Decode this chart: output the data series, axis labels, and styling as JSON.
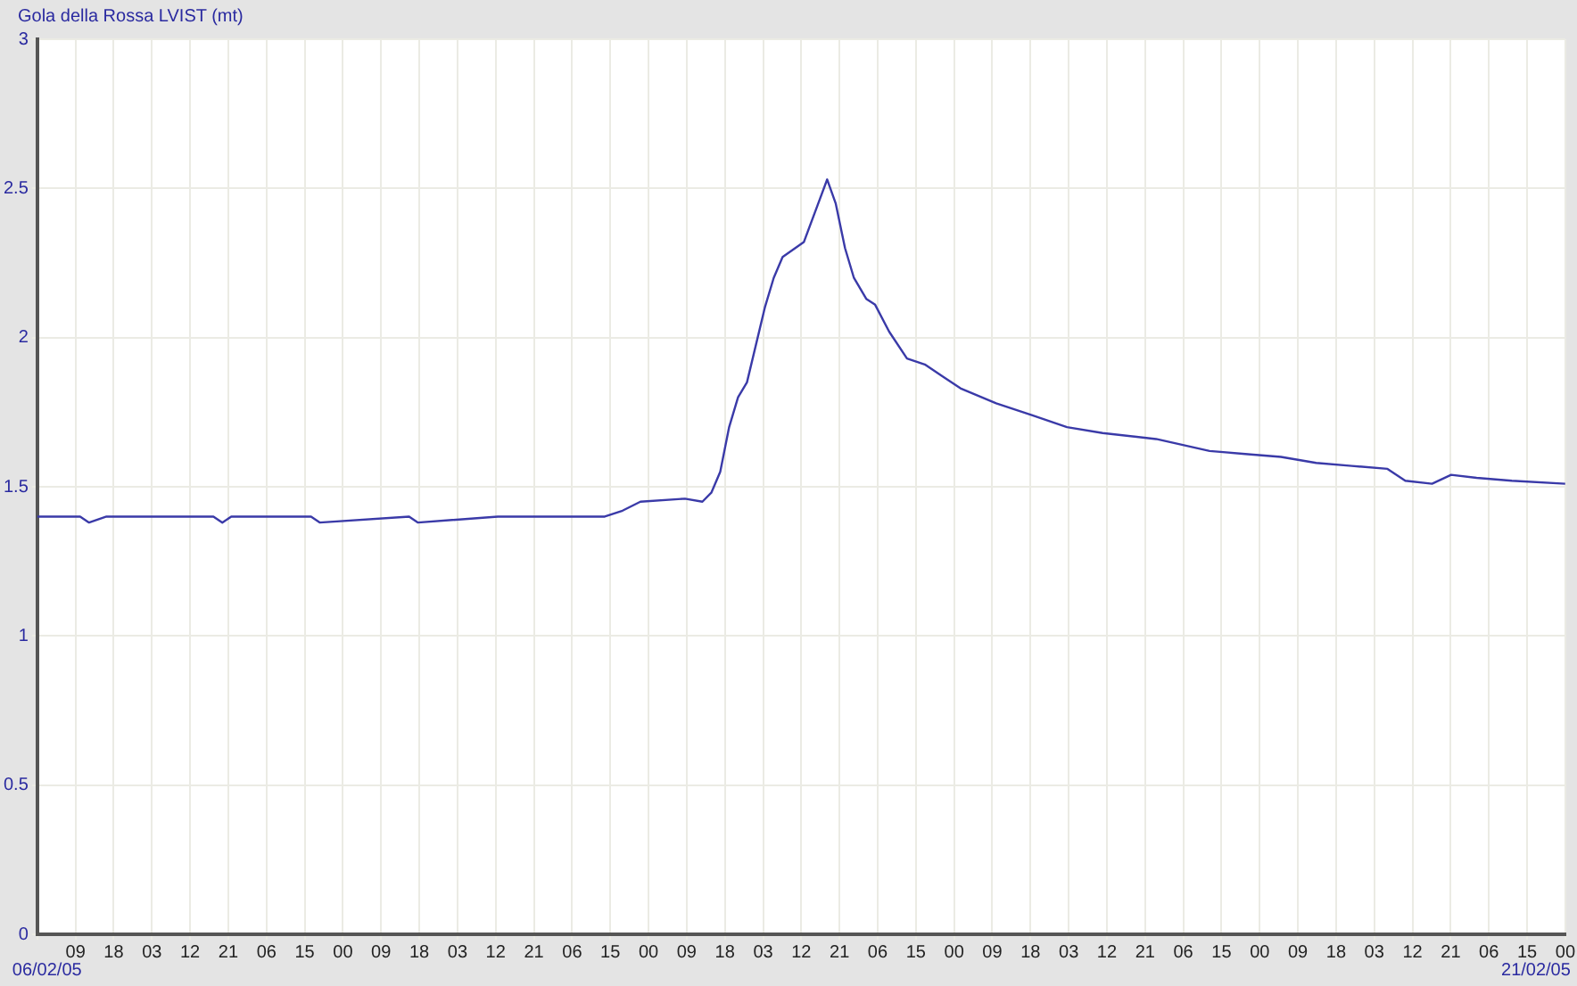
{
  "chart_data": {
    "type": "line",
    "title": "Gola della Rossa LVIST (mt)",
    "annotations": [
      "06/02/05",
      "21/02/05"
    ],
    "series": [
      {
        "color": "#3a3aa8",
        "x": [
          0,
          10.1,
          12.2,
          16.3,
          24.7,
          41.5,
          43.6,
          45.7,
          64.5,
          66.6,
          87.6,
          89.7,
          108.5,
          133.7,
          137.9,
          142.1,
          152.6,
          156.7,
          158.8,
          160.9,
          163.0,
          165.1,
          167.2,
          171.4,
          173.5,
          175.6,
          180.6,
          184.0,
          186.1,
          188.1,
          190.3,
          192.4,
          195.3,
          197.4,
          200.7,
          204.9,
          209.1,
          213.3,
          217.5,
          225.9,
          234.3,
          242.6,
          251.0,
          263.6,
          276.2,
          284.6,
          293.0,
          301.3,
          309.7,
          318.1,
          322.3,
          328.6,
          333.1,
          339.1,
          347.4,
          360
        ],
        "values": [
          1.4,
          1.4,
          1.38,
          1.4,
          1.4,
          1.4,
          1.38,
          1.4,
          1.4,
          1.38,
          1.4,
          1.38,
          1.4,
          1.4,
          1.42,
          1.45,
          1.46,
          1.45,
          1.48,
          1.55,
          1.7,
          1.8,
          1.85,
          2.1,
          2.2,
          2.27,
          2.32,
          2.45,
          2.53,
          2.45,
          2.3,
          2.2,
          2.13,
          2.11,
          2.02,
          1.93,
          1.91,
          1.87,
          1.83,
          1.78,
          1.74,
          1.7,
          1.68,
          1.66,
          1.62,
          1.61,
          1.6,
          1.58,
          1.57,
          1.56,
          1.52,
          1.51,
          1.54,
          1.53,
          1.52,
          1.51
        ]
      }
    ],
    "xlim": [
      0,
      360
    ],
    "xticks": [
      {
        "value": 0,
        "label": null
      },
      {
        "value": 9,
        "label": "09"
      },
      {
        "value": 18,
        "label": "18"
      },
      {
        "value": 27,
        "label": "03"
      },
      {
        "value": 36,
        "label": "12"
      },
      {
        "value": 45,
        "label": "21"
      },
      {
        "value": 54,
        "label": "06"
      },
      {
        "value": 63,
        "label": "15"
      },
      {
        "value": 72,
        "label": "00"
      },
      {
        "value": 81,
        "label": "09"
      },
      {
        "value": 90,
        "label": "18"
      },
      {
        "value": 99,
        "label": "03"
      },
      {
        "value": 108,
        "label": "12"
      },
      {
        "value": 117,
        "label": "21"
      },
      {
        "value": 126,
        "label": "06"
      },
      {
        "value": 135,
        "label": "15"
      },
      {
        "value": 144,
        "label": "00"
      },
      {
        "value": 153,
        "label": "09"
      },
      {
        "value": 162,
        "label": "18"
      },
      {
        "value": 171,
        "label": "03"
      },
      {
        "value": 180,
        "label": "12"
      },
      {
        "value": 189,
        "label": "21"
      },
      {
        "value": 198,
        "label": "06"
      },
      {
        "value": 207,
        "label": "15"
      },
      {
        "value": 216,
        "label": "00"
      },
      {
        "value": 225,
        "label": "09"
      },
      {
        "value": 234,
        "label": "18"
      },
      {
        "value": 243,
        "label": "03"
      },
      {
        "value": 252,
        "label": "12"
      },
      {
        "value": 261,
        "label": "21"
      },
      {
        "value": 270,
        "label": "06"
      },
      {
        "value": 279,
        "label": "15"
      },
      {
        "value": 288,
        "label": "00"
      },
      {
        "value": 297,
        "label": "09"
      },
      {
        "value": 306,
        "label": "18"
      },
      {
        "value": 315,
        "label": "03"
      },
      {
        "value": 324,
        "label": "12"
      },
      {
        "value": 333,
        "label": "21"
      },
      {
        "value": 342,
        "label": "06"
      },
      {
        "value": 351,
        "label": "15"
      },
      {
        "value": 360,
        "label": "00"
      }
    ],
    "ylim": [
      0,
      3
    ],
    "yticks": [
      0,
      0.5,
      1,
      1.5,
      2,
      2.5,
      3
    ],
    "grid": true,
    "legend": false,
    "marker": "none",
    "line_style": "solid"
  }
}
